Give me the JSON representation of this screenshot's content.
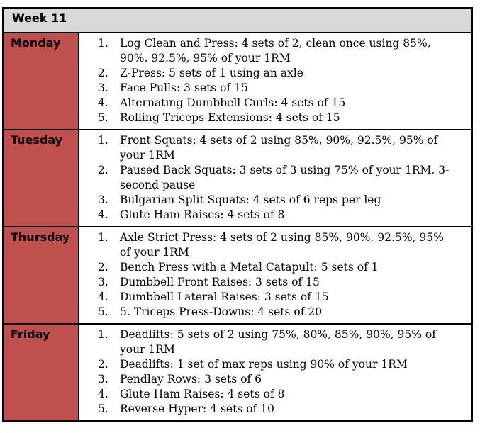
{
  "week_title": "Week 11",
  "days": [
    {
      "day": "Monday",
      "exercises": [
        "Log Clean and Press: 4 sets of 2, clean once using 85%, 90%, 92.5%, 95% of your 1RM",
        "Z-Press: 5 sets of 1 using an axle",
        "Face Pulls: 3 sets of 15",
        "Alternating Dumbbell Curls: 4 sets of 15",
        "Rolling Triceps Extensions: 4 sets of 15"
      ]
    },
    {
      "day": "Tuesday",
      "exercises": [
        "Front Squats: 4 sets of 2 using 85%, 90%, 92.5%, 95% of your 1RM",
        "Paused Back Squats: 3 sets of 3 using 75% of your 1RM, 3-second pause",
        "Bulgarian Split Squats: 4 sets of 6 reps per leg",
        "Glute Ham Raises: 4 sets of 8"
      ]
    },
    {
      "day": "Thursday",
      "exercises": [
        "Axle Strict Press: 4 sets of 2 using 85%, 90%, 92.5%, 95% of your 1RM",
        "Bench Press with a Metal Catapult: 5 sets of 1",
        "Dumbbell Front Raises: 3 sets of 15",
        "Dumbbell Lateral Raises: 3 sets of 15",
        "5. Triceps Press-Downs: 4 sets of 20"
      ]
    },
    {
      "day": "Friday",
      "exercises": [
        "Deadlifts: 5 sets of 2 using 75%, 80%, 85%, 90%, 95% of your 1RM",
        "Deadlifts: 1 set of max reps using 90% of your 1RM",
        "Pendlay Rows: 3 sets of 6",
        "Glute Ham Raises: 4 sets of 8",
        "Reverse Hyper: 4 sets of 10"
      ]
    }
  ],
  "colors": {
    "header_bg": "#d9d9d9",
    "day_bg": "#c0504d",
    "border": "#000000"
  }
}
